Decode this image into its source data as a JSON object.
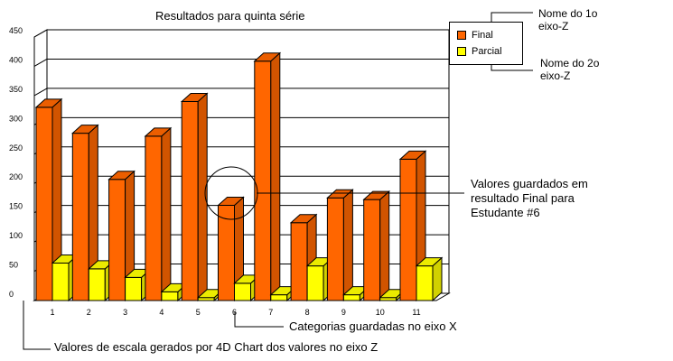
{
  "chart_data": {
    "type": "bar",
    "title": "Resultados para quinta série",
    "categories": [
      "1",
      "2",
      "3",
      "4",
      "5",
      "6",
      "7",
      "8",
      "9",
      "10",
      "11"
    ],
    "series": [
      {
        "name": "Final",
        "color": "#ff6600",
        "values": [
          335,
          290,
          210,
          285,
          345,
          165,
          415,
          135,
          178,
          175,
          245
        ]
      },
      {
        "name": "Parcial",
        "color": "#ffff00",
        "values": [
          65,
          55,
          40,
          15,
          5,
          30,
          10,
          60,
          10,
          5,
          60
        ]
      }
    ],
    "y_ticks": [
      "0",
      "50",
      "100",
      "150",
      "200",
      "250",
      "300",
      "350",
      "400",
      "450"
    ],
    "ylim": [
      0,
      450
    ],
    "grid": true,
    "legend_position": "top-right",
    "style": "3d"
  },
  "annotations": {
    "z1_name": "Nome do 1o eixo-Z",
    "z2_name": "Nome do 2o eixo-Z",
    "stored_values": "Valores guardados em resultado Final para Estudante #6",
    "categories_x": "Categorias guardadas no eixo X",
    "scale_values": "Valores de escala gerados por 4D Chart dos valores no eixo Z"
  }
}
